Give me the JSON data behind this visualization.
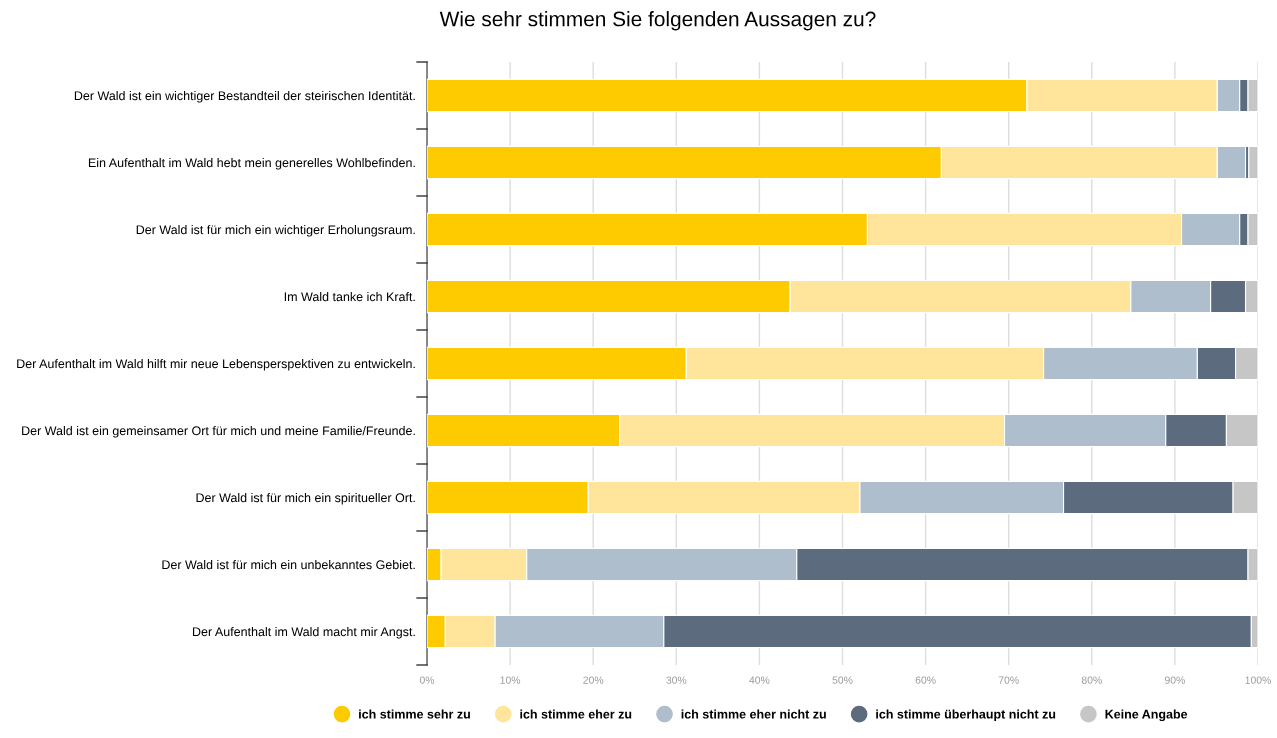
{
  "chart_data": {
    "type": "bar",
    "orientation": "horizontal",
    "stacked": true,
    "title": "Wie sehr stimmen Sie folgenden Aussagen zu?",
    "categories": [
      "Der Wald ist ein wichtiger Bestandteil der steirischen Identität.",
      "Ein Aufenthalt im Wald hebt mein generelles Wohlbefinden.",
      "Der Wald ist für mich ein wichtiger Erholungsraum.",
      "Im Wald tanke ich Kraft.",
      "Der Aufenthalt im Wald hilft mir neue Lebensperspektiven zu entwickeln.",
      "Der Wald ist ein gemeinsamer Ort für mich und meine Familie/Freunde.",
      "Der Wald ist für mich ein spiritueller Ort.",
      "Der Wald ist für mich ein unbekanntes Gebiet.",
      "Der Aufenthalt im Wald macht mir Angst."
    ],
    "series": [
      {
        "name": "ich stimme sehr zu",
        "color": "#fdcb00",
        "values": [
          72.2,
          61.9,
          53.0,
          43.7,
          31.2,
          23.2,
          19.4,
          1.7,
          2.2
        ]
      },
      {
        "name": "ich stimme eher zu",
        "color": "#fee59b",
        "values": [
          22.9,
          33.2,
          37.8,
          41.0,
          43.0,
          46.3,
          32.7,
          10.3,
          6.0
        ]
      },
      {
        "name": "ich stimme eher nicht zu",
        "color": "#afbecc",
        "values": [
          2.7,
          3.4,
          7.0,
          9.6,
          18.5,
          19.4,
          24.5,
          32.5,
          20.3
        ]
      },
      {
        "name": "ich stimme überhaupt nicht zu",
        "color": "#5d6b7e",
        "values": [
          1.0,
          0.4,
          1.0,
          4.2,
          4.6,
          7.3,
          20.4,
          54.3,
          70.7
        ]
      },
      {
        "name": "Keine Angabe",
        "color": "#c6c6c6",
        "values": [
          1.2,
          1.1,
          1.2,
          1.5,
          2.7,
          3.8,
          3.0,
          1.2,
          0.8
        ]
      }
    ],
    "xlim": [
      0,
      100
    ],
    "xticks": [
      {
        "value": 0,
        "label": "0%"
      },
      {
        "value": 10,
        "label": "10%"
      },
      {
        "value": 20,
        "label": "20%"
      },
      {
        "value": 30,
        "label": "30%"
      },
      {
        "value": 40,
        "label": "40%"
      },
      {
        "value": 50,
        "label": "50%"
      },
      {
        "value": 60,
        "label": "60%"
      },
      {
        "value": 70,
        "label": "70%"
      },
      {
        "value": 80,
        "label": "80%"
      },
      {
        "value": 90,
        "label": "90%"
      },
      {
        "value": 100,
        "label": "100%"
      }
    ],
    "grid": "x",
    "legend": "bottom",
    "marker": "circle"
  }
}
